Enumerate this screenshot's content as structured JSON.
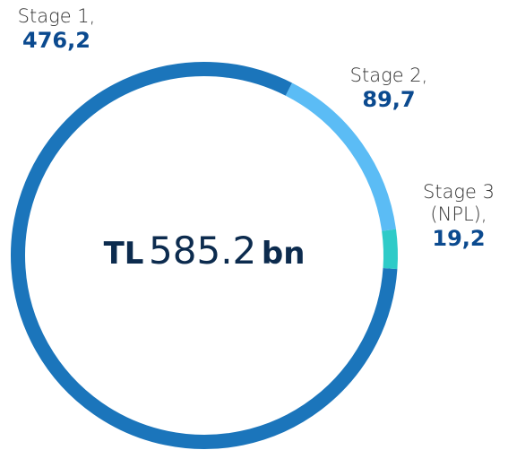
{
  "chart_data": {
    "type": "donut",
    "categories": [
      "Stage 1,",
      "Stage 2,",
      "Stage 3 (NPL),"
    ],
    "values": [
      476.2,
      89.7,
      19.2
    ],
    "value_labels": [
      "476,2",
      "89,7",
      "19,2"
    ],
    "colors": [
      "#1b75bb",
      "#5bbcf5",
      "#2ecbc8"
    ],
    "total_prefix": "TL",
    "total": 585.2,
    "total_suffix": "bn"
  }
}
